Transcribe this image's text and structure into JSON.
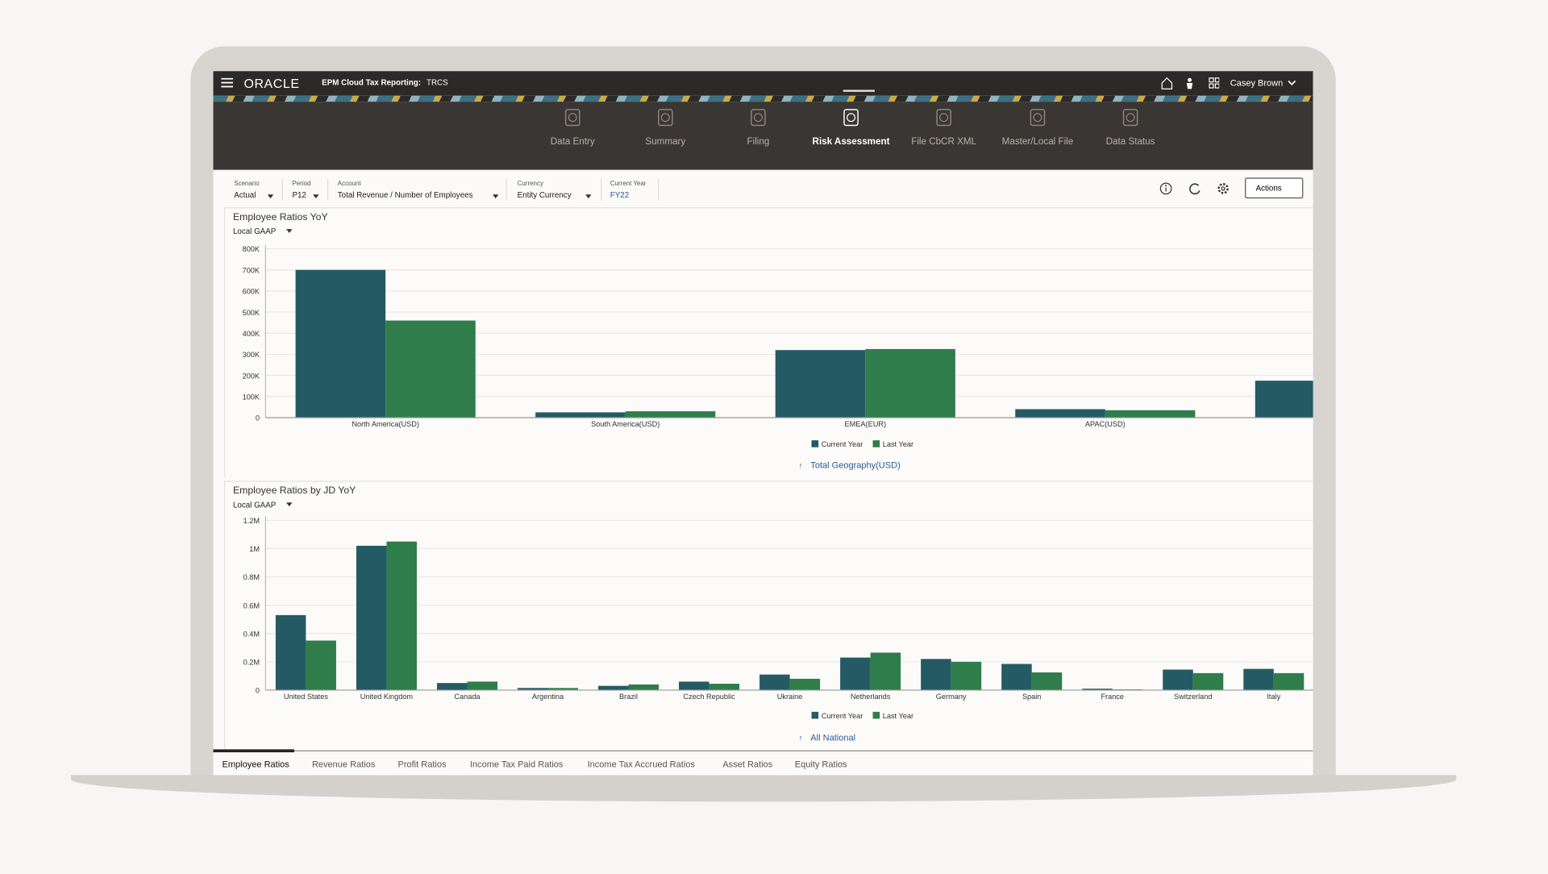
{
  "header": {
    "logo": "ORACLE",
    "app": "EPM Cloud Tax Reporting:",
    "app_code": "TRCS",
    "user": "Casey Brown"
  },
  "nav": [
    "Data Entry",
    "Summary",
    "Filing",
    "Risk Assessment",
    "File CbCR XML",
    "Master/Local File",
    "Data Status"
  ],
  "filters": [
    {
      "label": "Scenario",
      "value": "Actual"
    },
    {
      "label": "Period",
      "value": "P12"
    },
    {
      "label": "Account",
      "value": "Total Revenue / Number of Employees"
    },
    {
      "label": "Currency",
      "value": "Entity Currency"
    },
    {
      "label": "Current Year",
      "value": "FY22"
    }
  ],
  "actions": "Actions",
  "chart_data": [
    {
      "type": "bar",
      "title": "Employee Ratios YoY",
      "dropdown": "Local GAAP",
      "link": "Total Geography(USD)",
      "categories": [
        "North America(USD)",
        "South America(USD)",
        "EMEA(EUR)",
        "APAC(USD)",
        null
      ],
      "series": [
        {
          "name": "Current Year",
          "color": "#245a63",
          "values": [
            700000,
            25000,
            320000,
            40000,
            175000
          ]
        },
        {
          "name": "Last Year",
          "color": "#2f7d4a",
          "values": [
            460000,
            30000,
            325000,
            35000,
            null
          ]
        }
      ],
      "ylim": [
        0,
        800000
      ],
      "yticks": [
        0,
        {
          "value": 100000,
          "label": "100K"
        },
        {
          "value": 200000,
          "label": "200K"
        },
        {
          "value": 300000,
          "label": "300K"
        },
        {
          "value": 400000,
          "label": "400K"
        },
        {
          "value": 500000,
          "label": "500K"
        },
        {
          "value": 600000,
          "label": "600K"
        },
        {
          "value": 700000,
          "label": "700K"
        },
        {
          "value": 800000,
          "label": "800K"
        }
      ],
      "grid": true
    },
    {
      "type": "bar",
      "title": "Employee Ratios by JD YoY",
      "dropdown": "Local GAAP",
      "link": "All National",
      "categories": [
        "United States",
        "United Kingdom",
        "Canada",
        "Argentina",
        "Brazil",
        "Czech Republic",
        "Ukraine",
        "Netherlands",
        "Germany",
        "Spain",
        "France",
        "Switzerland",
        "Italy"
      ],
      "series": [
        {
          "name": "Current Year",
          "color": "#245a63",
          "values": [
            530000,
            1020000,
            50000,
            15000,
            30000,
            60000,
            110000,
            230000,
            220000,
            185000,
            10000,
            145000,
            150000
          ]
        },
        {
          "name": "Last Year",
          "color": "#2f7d4a",
          "values": [
            350000,
            1050000,
            60000,
            15000,
            40000,
            45000,
            80000,
            265000,
            200000,
            125000,
            5000,
            120000,
            120000
          ]
        }
      ],
      "ylim": [
        0,
        1200000
      ],
      "yticks": [
        0,
        {
          "value": 200000,
          "label": "0.2M"
        },
        {
          "value": 400000,
          "label": "0.4M"
        },
        {
          "value": 600000,
          "label": "0.6M"
        },
        {
          "value": 800000,
          "label": "0.8M"
        },
        {
          "value": 1000000,
          "label": "1M"
        },
        {
          "value": 1200000,
          "label": "1.2M"
        }
      ],
      "grid": true
    }
  ],
  "tabs": [
    "Employee Ratios",
    "Revenue Ratios",
    "Profit Ratios",
    "Income Tax Paid Ratios",
    "Income Tax Accrued Ratios",
    "Asset Ratios",
    "Equity Ratios"
  ]
}
